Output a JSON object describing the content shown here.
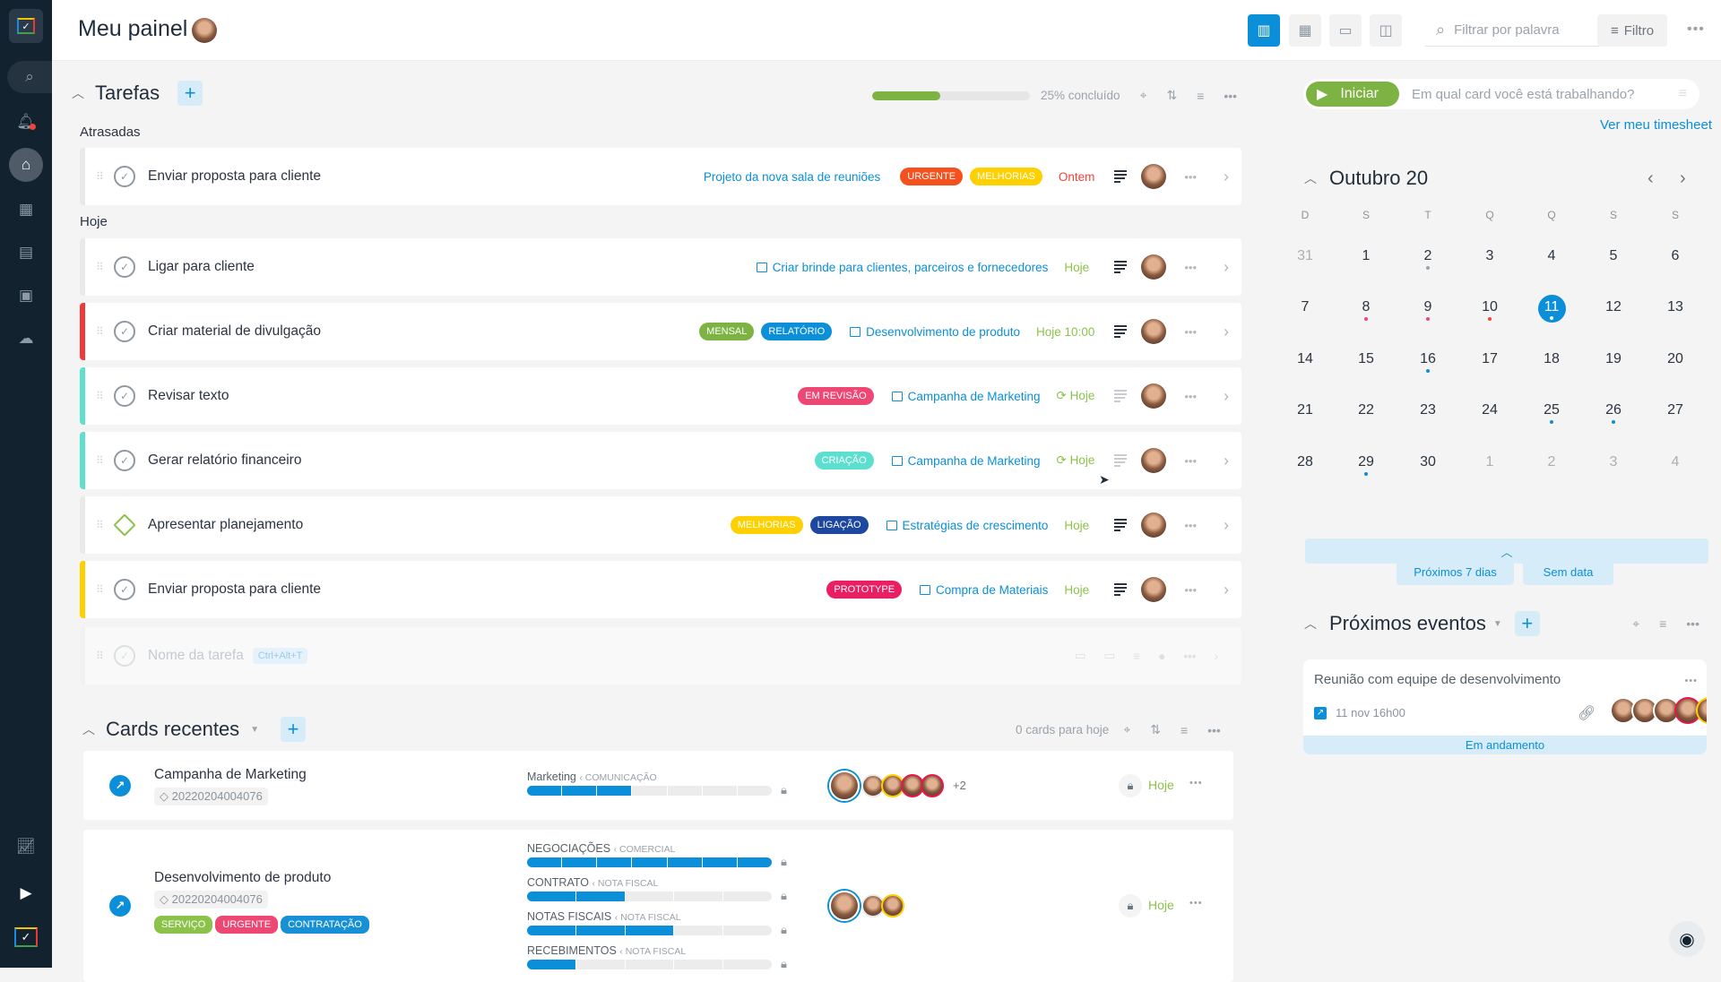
{
  "header": {
    "title": "Meu painel",
    "search_placeholder": "Filtrar por palavra",
    "filter_label": "Filtro",
    "views": [
      "dashboard-icon",
      "calendar-month-icon",
      "calendar-day-icon",
      "calendar-week-icon"
    ]
  },
  "sidebar": {
    "items": [
      "search-icon",
      "bell-icon",
      "home-icon",
      "table-icon",
      "kanban-icon",
      "contacts-icon",
      "cloud-icon",
      "chart-icon",
      "play-icon",
      "logo-icon"
    ]
  },
  "tasks": {
    "title": "Tarefas",
    "progress_percent": 25,
    "progress_label": "25% concluído",
    "groups": [
      {
        "label": "Atrasadas"
      },
      {
        "label": "Hoje"
      }
    ],
    "items": [
      {
        "title": "Enviar proposta para cliente",
        "project": "Projeto da nova sala de reuniões",
        "project_icon": false,
        "tags": [
          {
            "label": "URGENTE",
            "color": "#f4511e"
          },
          {
            "label": "MELHORIAS",
            "color": "#ffd000"
          }
        ],
        "date": "Ontem",
        "date_color": "#f44336",
        "recurring": false,
        "desc_dark": true,
        "stripe": "#e9e9e9",
        "type": "check"
      },
      {
        "title": "Ligar para cliente",
        "project": "Criar brinde para clientes, parceiros e fornecedores",
        "project_icon": true,
        "tags": [],
        "date": "Hoje",
        "date_color": "#8bc34a",
        "recurring": false,
        "desc_dark": true,
        "stripe": "#e9e9e9",
        "type": "check"
      },
      {
        "title": "Criar material de divulgação",
        "project": "Desenvolvimento de produto",
        "project_icon": true,
        "tags": [
          {
            "label": "MENSAL",
            "color": "#7cb342"
          },
          {
            "label": "RELATÓRIO",
            "color": "#0a8fd8"
          }
        ],
        "date": "Hoje 10:00",
        "date_color": "#8bc34a",
        "recurring": false,
        "desc_dark": true,
        "stripe": "#f03a3a",
        "type": "check"
      },
      {
        "title": "Revisar texto",
        "project": "Campanha de Marketing",
        "project_icon": true,
        "tags": [
          {
            "label": "EM REVISÃO",
            "color": "#ef4774"
          }
        ],
        "date": "Hoje",
        "date_color": "#8bc34a",
        "recurring": true,
        "desc_dark": false,
        "stripe": "#5ee0cc",
        "type": "check"
      },
      {
        "title": "Gerar relatório financeiro",
        "project": "Campanha de Marketing",
        "project_icon": true,
        "tags": [
          {
            "label": "CRIAÇÃO",
            "color": "#5ddfd0"
          }
        ],
        "date": "Hoje",
        "date_color": "#8bc34a",
        "recurring": true,
        "desc_dark": false,
        "stripe": "#5ee0cc",
        "type": "check"
      },
      {
        "title": "Apresentar planejamento",
        "project": "Estratégias de crescimento",
        "project_icon": true,
        "tags": [
          {
            "label": "MELHORIAS",
            "color": "#ffd000"
          },
          {
            "label": "LIGAÇÃO",
            "color": "#1e47a0"
          }
        ],
        "date": "Hoje",
        "date_color": "#8bc34a",
        "recurring": false,
        "desc_dark": true,
        "stripe": "#e9e9e9",
        "type": "milestone"
      },
      {
        "title": "Enviar proposta para cliente",
        "project": "Compra de Materiais",
        "project_icon": true,
        "tags": [
          {
            "label": "PROTOTYPE",
            "color": "#e91e63"
          }
        ],
        "date": "Hoje",
        "date_color": "#8bc34a",
        "recurring": false,
        "desc_dark": true,
        "stripe": "#ffd000",
        "type": "check"
      }
    ],
    "new_task": {
      "placeholder": "Nome da tarefa",
      "shortcut": "Ctrl+Alt+T"
    }
  },
  "cards": {
    "title": "Cards recentes",
    "count_label": "0 cards para hoje",
    "items": [
      {
        "title": "Campanha de Marketing",
        "id": "20220204004076",
        "tags": [],
        "pipelines": [
          {
            "name": "Marketing",
            "phase": "COMUNICAÇÃO",
            "segments": 7,
            "done": 3
          }
        ],
        "extra_members": "+2",
        "members": 5,
        "date": "Hoje"
      },
      {
        "title": "Desenvolvimento de produto",
        "id": "20220204004076",
        "tags": [
          {
            "label": "SERVIÇO",
            "color": "#8bc34a"
          },
          {
            "label": "URGENTE",
            "color": "#ef4774"
          },
          {
            "label": "CONTRATAÇÃO",
            "color": "#1890d5"
          }
        ],
        "pipelines": [
          {
            "name": "NEGOCIAÇÕES",
            "phase": "COMERCIAL",
            "segments": 7,
            "done": 7
          },
          {
            "name": "CONTRATO",
            "phase": "NOTA FISCAL",
            "segments": 5,
            "done": 2
          },
          {
            "name": "NOTAS FISCAIS",
            "phase": "NOTA FISCAL",
            "segments": 5,
            "done": 3
          },
          {
            "name": "RECEBIMENTOS",
            "phase": "NOTA FISCAL",
            "segments": 5,
            "done": 1
          }
        ],
        "extra_members": "",
        "members": 3,
        "date": "Hoje"
      }
    ]
  },
  "timer": {
    "start_label": "Iniciar",
    "placeholder": "Em qual card você está trabalhando?",
    "timesheet_link": "Ver meu timesheet"
  },
  "calendar": {
    "title": "Outubro 20",
    "weekdays": [
      "D",
      "S",
      "T",
      "Q",
      "Q",
      "S",
      "S"
    ],
    "days": [
      [
        {
          "d": "31",
          "m": 1
        },
        {
          "d": "1"
        },
        {
          "d": "2",
          "dot": "#9aa3ab"
        },
        {
          "d": "3"
        },
        {
          "d": "4"
        },
        {
          "d": "5"
        },
        {
          "d": "6"
        }
      ],
      [
        {
          "d": "7"
        },
        {
          "d": "8",
          "dot": "#ef4774"
        },
        {
          "d": "9",
          "dot": "#ef4774"
        },
        {
          "d": "10",
          "dot": "#f44336"
        },
        {
          "d": "11",
          "today": 1,
          "dot": "#ffffff"
        },
        {
          "d": "12"
        },
        {
          "d": "13"
        }
      ],
      [
        {
          "d": "14"
        },
        {
          "d": "15"
        },
        {
          "d": "16",
          "dot": "#0a8fd8"
        },
        {
          "d": "17"
        },
        {
          "d": "18"
        },
        {
          "d": "19"
        },
        {
          "d": "20"
        }
      ],
      [
        {
          "d": "21"
        },
        {
          "d": "22"
        },
        {
          "d": "23"
        },
        {
          "d": "24"
        },
        {
          "d": "25",
          "dot": "#0a8fd8"
        },
        {
          "d": "26",
          "dot": "#0a8fd8"
        },
        {
          "d": "27"
        }
      ],
      [
        {
          "d": "28"
        },
        {
          "d": "29",
          "dot": "#0a8fd8"
        },
        {
          "d": "30"
        },
        {
          "d": "1",
          "m": 1
        },
        {
          "d": "2",
          "m": 1
        },
        {
          "d": "3",
          "m": 1
        },
        {
          "d": "4",
          "m": 1
        }
      ]
    ],
    "next7_label": "Próximos 7 dias",
    "nodate_label": "Sem data"
  },
  "events": {
    "title": "Próximos eventos",
    "items": [
      {
        "title": "Reunião com equipe de desenvolvimento",
        "datetime": "11 nov 16h00",
        "status": "Em andamento",
        "attendees": 5
      }
    ]
  },
  "colors": {
    "accent": "#0a8fd8",
    "green": "#7cb342",
    "sidebar": "#13222f"
  }
}
